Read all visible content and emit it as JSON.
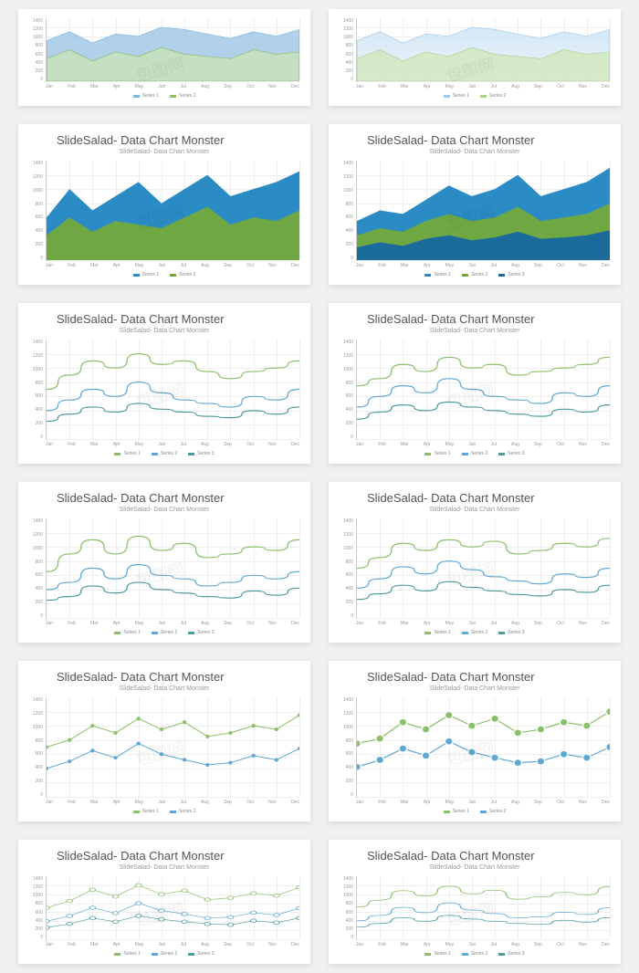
{
  "common": {
    "title": "SlideSalad- Data Chart Monster",
    "subtitle": "SlideSalad- Data Chart Monster",
    "x_labels": [
      "Jan",
      "Feb",
      "Mar",
      "Apr",
      "May",
      "Jun",
      "Jul",
      "Aug",
      "Sep",
      "Oct",
      "Nov",
      "Dec"
    ],
    "y_labels": [
      "1400",
      "1200",
      "1000",
      "800",
      "600",
      "400",
      "200",
      "0"
    ],
    "legend": [
      "Series 1",
      "Series 2",
      "Series 3"
    ],
    "watermark": "包图网"
  },
  "colors": {
    "light_blue": "#a3c9e8",
    "mid_blue": "#7bb8e0",
    "pale_green": "#c9e2b8",
    "pale_blue_grad_top": "#cfe5f5",
    "pale_blue_grad_bot": "#eaf4fb",
    "pale_green2": "#d0e8c0",
    "solid_blue": "#2b8bc4",
    "solid_green": "#6fa843",
    "line_blue": "#5fa8d3",
    "line_green": "#8bbf6a",
    "line_teal": "#4a9b9b",
    "grid": "#eeeeee",
    "axis": "#cccccc",
    "text": "#555555",
    "subtext": "#999999",
    "bg": "#ffffff",
    "page_bg": "#f0f0f0"
  },
  "charts": [
    {
      "id": "c1",
      "type": "area",
      "short": true,
      "series": [
        {
          "color_fill": "#a3c9e8",
          "color_stroke": "#7bb8e0",
          "opacity": 0.85,
          "data": [
            900,
            1100,
            850,
            1050,
            1000,
            1200,
            1150,
            1050,
            950,
            1100,
            1000,
            1150
          ]
        },
        {
          "color_fill": "#c9e2b8",
          "color_stroke": "#8bbf6a",
          "opacity": 0.8,
          "data": [
            500,
            700,
            450,
            650,
            550,
            750,
            600,
            550,
            500,
            700,
            600,
            650
          ]
        }
      ]
    },
    {
      "id": "c2",
      "type": "area",
      "short": true,
      "series": [
        {
          "color_fill": "url(#grad-blue)",
          "color_stroke": "#a3c9e8",
          "opacity": 0.9,
          "data": [
            900,
            1100,
            850,
            1050,
            1000,
            1200,
            1150,
            1050,
            950,
            1100,
            1000,
            1150
          ]
        },
        {
          "color_fill": "#d0e8c0",
          "color_stroke": "#b0d090",
          "opacity": 0.85,
          "data": [
            500,
            700,
            450,
            650,
            550,
            750,
            600,
            550,
            500,
            700,
            600,
            650
          ]
        }
      ]
    },
    {
      "id": "c3",
      "type": "area_stacked",
      "series": [
        {
          "color_fill": "#2b8bc4",
          "color_stroke": "none",
          "opacity": 1,
          "data": [
            600,
            1000,
            700,
            900,
            1100,
            800,
            1000,
            1200,
            900,
            1000,
            1100,
            1250
          ]
        },
        {
          "color_fill": "#6fa843",
          "color_stroke": "none",
          "opacity": 1,
          "data": [
            350,
            600,
            400,
            550,
            500,
            450,
            600,
            750,
            500,
            600,
            550,
            700
          ]
        }
      ]
    },
    {
      "id": "c4",
      "type": "area_stacked",
      "series": [
        {
          "color_fill": "#2b8bc4",
          "color_stroke": "none",
          "opacity": 1,
          "data": [
            550,
            700,
            650,
            850,
            1050,
            900,
            1000,
            1200,
            900,
            1000,
            1100,
            1300
          ]
        },
        {
          "color_fill": "#6fa843",
          "color_stroke": "none",
          "opacity": 1,
          "data": [
            350,
            450,
            400,
            550,
            650,
            550,
            600,
            750,
            550,
            600,
            650,
            800
          ]
        },
        {
          "color_fill": "#1a6a9a",
          "color_stroke": "none",
          "opacity": 1,
          "data": [
            180,
            250,
            200,
            300,
            350,
            280,
            320,
            400,
            300,
            320,
            350,
            420
          ]
        }
      ]
    },
    {
      "id": "c5",
      "type": "line_smooth",
      "series": [
        {
          "color_stroke": "#8bbf6a",
          "width": 1.2,
          "data": [
            700,
            900,
            1100,
            1000,
            1200,
            1050,
            1100,
            950,
            850,
            950,
            1000,
            1100
          ]
        },
        {
          "color_stroke": "#5fa8d3",
          "width": 1.2,
          "data": [
            400,
            550,
            700,
            600,
            800,
            650,
            550,
            500,
            450,
            600,
            550,
            700
          ]
        },
        {
          "color_stroke": "#4a9b9b",
          "width": 1.2,
          "data": [
            250,
            350,
            450,
            380,
            500,
            420,
            380,
            320,
            300,
            400,
            350,
            450
          ]
        }
      ]
    },
    {
      "id": "c6",
      "type": "line_smooth",
      "series": [
        {
          "color_stroke": "#8bbf6a",
          "width": 1.2,
          "data": [
            750,
            850,
            1050,
            950,
            1150,
            1000,
            1050,
            900,
            950,
            1000,
            1050,
            1150
          ]
        },
        {
          "color_stroke": "#5fa8d3",
          "width": 1.2,
          "data": [
            450,
            600,
            750,
            650,
            850,
            700,
            600,
            550,
            500,
            650,
            600,
            750
          ]
        },
        {
          "color_stroke": "#4a9b9b",
          "width": 1.2,
          "data": [
            280,
            380,
            480,
            400,
            520,
            450,
            400,
            350,
            320,
            420,
            380,
            480
          ]
        }
      ]
    },
    {
      "id": "c7",
      "type": "line_smooth",
      "series": [
        {
          "color_stroke": "#8bbf6a",
          "width": 1.2,
          "data": [
            650,
            900,
            1100,
            900,
            1150,
            950,
            1050,
            850,
            900,
            1000,
            950,
            1100
          ]
        },
        {
          "color_stroke": "#5fa8d3",
          "width": 1.2,
          "data": [
            400,
            500,
            700,
            550,
            750,
            600,
            550,
            450,
            500,
            600,
            550,
            650
          ]
        },
        {
          "color_stroke": "#4a9b9b",
          "width": 1.2,
          "data": [
            250,
            300,
            450,
            350,
            500,
            400,
            350,
            300,
            280,
            380,
            320,
            420
          ]
        }
      ]
    },
    {
      "id": "c8",
      "type": "line_smooth",
      "series": [
        {
          "color_stroke": "#8bbf6a",
          "width": 1.2,
          "data": [
            700,
            850,
            1050,
            950,
            1100,
            1000,
            1080,
            900,
            950,
            1050,
            1000,
            1120
          ]
        },
        {
          "color_stroke": "#5fa8d3",
          "width": 1.2,
          "data": [
            420,
            550,
            720,
            620,
            800,
            680,
            580,
            520,
            480,
            620,
            570,
            700
          ]
        },
        {
          "color_stroke": "#4a9b9b",
          "width": 1.2,
          "data": [
            260,
            340,
            460,
            380,
            510,
            430,
            380,
            330,
            310,
            400,
            360,
            460
          ]
        }
      ]
    },
    {
      "id": "c9",
      "type": "line_markers",
      "marker": "dot",
      "marker_size": 2,
      "series": [
        {
          "color_stroke": "#8bbf6a",
          "width": 1,
          "data": [
            700,
            800,
            1000,
            900,
            1100,
            950,
            1050,
            850,
            900,
            1000,
            950,
            1150
          ]
        },
        {
          "color_stroke": "#5fa8d3",
          "width": 1,
          "data": [
            400,
            500,
            650,
            550,
            750,
            600,
            520,
            450,
            480,
            580,
            520,
            680
          ]
        }
      ]
    },
    {
      "id": "c10",
      "type": "line_markers",
      "marker": "circle",
      "marker_size": 4,
      "series": [
        {
          "color_stroke": "#8bbf6a",
          "width": 1.2,
          "data": [
            750,
            820,
            1050,
            950,
            1150,
            1000,
            1100,
            900,
            950,
            1050,
            1000,
            1200
          ]
        },
        {
          "color_stroke": "#5fa8d3",
          "width": 1.2,
          "data": [
            420,
            520,
            680,
            580,
            780,
            630,
            550,
            480,
            500,
            600,
            550,
            700
          ]
        }
      ]
    },
    {
      "id": "c11",
      "type": "line_markers",
      "marker": "hollow",
      "marker_size": 3,
      "short": true,
      "series": [
        {
          "color_stroke": "#8bbf6a",
          "width": 1,
          "data": [
            700,
            850,
            1100,
            950,
            1200,
            1000,
            1080,
            880,
            920,
            1020,
            970,
            1150
          ]
        },
        {
          "color_stroke": "#5fa8d3",
          "width": 1,
          "data": [
            400,
            520,
            700,
            580,
            800,
            640,
            560,
            470,
            490,
            590,
            540,
            690
          ]
        },
        {
          "color_stroke": "#4a9b9b",
          "width": 1,
          "data": [
            260,
            340,
            470,
            390,
            520,
            440,
            390,
            340,
            320,
            410,
            370,
            470
          ]
        }
      ]
    },
    {
      "id": "c12",
      "type": "line_smooth",
      "short": true,
      "series": [
        {
          "color_stroke": "#8bbf6a",
          "width": 1.2,
          "data": [
            720,
            870,
            1080,
            960,
            1180,
            1010,
            1090,
            890,
            940,
            1040,
            990,
            1170
          ]
        },
        {
          "color_stroke": "#5fa8d3",
          "width": 1.2,
          "data": [
            410,
            530,
            710,
            590,
            810,
            650,
            570,
            480,
            500,
            600,
            550,
            700
          ]
        },
        {
          "color_stroke": "#4a9b9b",
          "width": 1.2,
          "data": [
            270,
            350,
            480,
            400,
            530,
            450,
            400,
            350,
            330,
            420,
            380,
            480
          ]
        }
      ]
    }
  ],
  "ylim": [
    0,
    1400
  ]
}
